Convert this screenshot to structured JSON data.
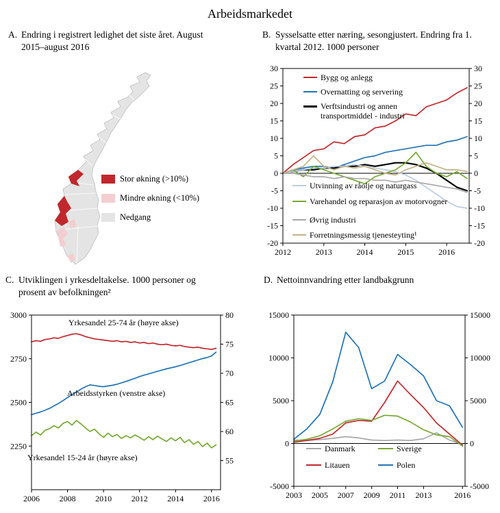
{
  "page_title": "Arbeidsmarkedet",
  "panels": {
    "a": {
      "letter": "A.",
      "title": "Endring i registrert ledighet det siste året. August 2015–august 2016",
      "legend": [
        {
          "label": "Stor økning (>10%)",
          "color": "#c0282d"
        },
        {
          "label": "Mindre økning (<10%)",
          "color": "#f4cdd0"
        },
        {
          "label": "Nedgang",
          "color": "#e4e4e4"
        }
      ],
      "map": {
        "land_color": "#e4e4e4",
        "border_color": "#bdbdbd"
      }
    },
    "b": {
      "letter": "B.",
      "title": "Sysselsatte etter næring, sesongjustert. Endring fra 1. kvartal 2012. 1000 personer"
    },
    "c": {
      "letter": "C.",
      "title": "Utviklingen i yrkesdeltakelse. 1000 personer og prosent av befolkningen²"
    },
    "d": {
      "letter": "D.",
      "title": "Nettoinnvandring etter landbakgrunn"
    }
  },
  "chart_data": [
    {
      "panel": "B",
      "type": "line",
      "title": "Sysselsatte etter næring, sesongjustert. Endring fra 1. kvartal 2012. 1000 personer",
      "x_start": 2012.0,
      "x_step": 0.25,
      "xlim": [
        2012,
        2016.55
      ],
      "ylim": [
        -20,
        30
      ],
      "yticks": [
        -20,
        -15,
        -10,
        -5,
        0,
        5,
        10,
        15,
        20,
        25,
        30
      ],
      "xticks": [
        2012,
        2013,
        2014,
        2015,
        2016
      ],
      "zero_line": true,
      "grid": false,
      "series": [
        {
          "name": "Bygg og anlegg",
          "color": "#c0282d",
          "values": [
            0,
            2.5,
            4.5,
            6.5,
            7,
            9,
            8.5,
            10.5,
            11,
            13,
            13.5,
            15,
            17,
            16.5,
            19,
            20,
            21,
            23,
            24.5
          ]
        },
        {
          "name": "Overnatting og servering",
          "color": "#2272b5",
          "values": [
            0,
            1,
            1.5,
            2,
            2,
            1.5,
            2.5,
            3.5,
            4.5,
            5,
            6,
            6.5,
            7,
            7.5,
            8,
            8,
            9,
            9.5,
            10.5
          ]
        },
        {
          "name": "Verftsindustri og annen transportmiddel - industri",
          "color": "#000000",
          "w": 2.2,
          "values": [
            0,
            0.5,
            1,
            1,
            1.5,
            1.5,
            2,
            2,
            2.5,
            2,
            2.5,
            3,
            3,
            2.5,
            1.5,
            0,
            -2,
            -4,
            -5
          ]
        },
        {
          "name": "Utvinning av råolje og naturgass",
          "color": "#b9cde5",
          "values": [
            0,
            0.5,
            1,
            1.5,
            1.5,
            2,
            2,
            2.5,
            2,
            1.5,
            1,
            0.5,
            -0.5,
            -2,
            -4,
            -6,
            -8,
            -9.5,
            -10
          ]
        },
        {
          "name": "Varehandel og reparasjon av motorvogner",
          "color": "#77a833",
          "values": [
            0,
            1,
            -1,
            2,
            1,
            0,
            -1,
            -2,
            -3,
            -1,
            0,
            1,
            3,
            6,
            2,
            0,
            -1,
            0.5,
            -1.5
          ]
        },
        {
          "name": "Øvrig industri",
          "color": "#a8a8a8",
          "values": [
            0,
            0,
            -0.5,
            -1,
            -1,
            -1.5,
            -1,
            -1.5,
            -1.5,
            -2,
            -2,
            -2.5,
            -2,
            -2.5,
            -3,
            -3.5,
            -4,
            -4.5,
            -5.5
          ]
        },
        {
          "name": "Forretningsmessig tjenesteyting¹",
          "color": "#c2b286",
          "values": [
            0,
            1,
            2,
            5,
            2,
            1,
            2,
            1.5,
            2,
            1,
            0,
            -0.5,
            1,
            2,
            3,
            2,
            1,
            1,
            0.5
          ]
        }
      ]
    },
    {
      "panel": "C",
      "type": "line",
      "title": "Utviklingen i yrkesdeltakelse. 1000 personer og prosent av befolkningen²",
      "x_start": 2006.0,
      "x_step": 0.25,
      "xlim": [
        2006,
        2016.5
      ],
      "ylim_left": [
        2000,
        3000
      ],
      "yticks_left": [
        2250,
        2500,
        2750,
        3000
      ],
      "ylim_right": [
        50,
        80
      ],
      "yticks_right": [
        55,
        60,
        65,
        70,
        75,
        80
      ],
      "xticks": [
        2006,
        2008,
        2010,
        2012,
        2014,
        2016
      ],
      "zero_line": false,
      "grid": false,
      "series": [
        {
          "name": "Yrkesandel 25-74 år (høyre akse)",
          "axis": "right",
          "color": "#c0282d",
          "values": [
            75.4,
            75.6,
            75.5,
            75.8,
            75.9,
            76.1,
            76.0,
            76.3,
            76.5,
            76.7,
            76.8,
            76.6,
            76.3,
            76.1,
            75.9,
            75.8,
            75.7,
            75.6,
            75.5,
            75.6,
            75.4,
            75.5,
            75.3,
            75.4,
            75.2,
            75.3,
            75.1,
            75.2,
            75.0,
            74.9,
            75.0,
            74.8,
            74.7,
            74.8,
            74.6,
            74.5,
            74.4,
            74.5,
            74.3,
            74.2,
            74.1,
            74.3
          ]
        },
        {
          "name": "Arbeidsstyrken (venstre akse)",
          "axis": "left",
          "color": "#2272b5",
          "values": [
            2430,
            2438,
            2445,
            2455,
            2466,
            2480,
            2494,
            2510,
            2528,
            2545,
            2560,
            2576,
            2590,
            2600,
            2597,
            2592,
            2590,
            2594,
            2598,
            2604,
            2612,
            2620,
            2629,
            2638,
            2648,
            2656,
            2663,
            2670,
            2678,
            2685,
            2692,
            2698,
            2704,
            2711,
            2719,
            2727,
            2735,
            2743,
            2751,
            2757,
            2766,
            2788
          ]
        },
        {
          "name": "Yrkesandel 15-24 år (høyre akse)",
          "axis": "right",
          "color": "#77a833",
          "values": [
            59.3,
            59.9,
            59.4,
            60.2,
            60.5,
            61.0,
            60.6,
            61.4,
            61.7,
            61.1,
            61.9,
            61.3,
            60.6,
            60.0,
            60.4,
            59.6,
            59.0,
            59.7,
            59.1,
            59.5,
            58.8,
            59.3,
            58.9,
            59.4,
            59.0,
            58.5,
            59.1,
            58.6,
            59.2,
            58.7,
            58.3,
            58.9,
            58.4,
            59.0,
            58.1,
            58.6,
            57.8,
            58.3,
            57.4,
            58.0,
            57.2,
            57.7
          ]
        }
      ]
    },
    {
      "panel": "D",
      "type": "line",
      "title": "Nettoinnvandring etter landbakgrunn",
      "x_start": 2003,
      "x_step": 1,
      "xlim": [
        2003,
        2016.2
      ],
      "ylim": [
        -5000,
        15000
      ],
      "yticks": [
        -5000,
        0,
        5000,
        10000,
        15000
      ],
      "xticks": [
        2003,
        2005,
        2007,
        2009,
        2011,
        2013,
        2016
      ],
      "zero_line": true,
      "grid": false,
      "series": [
        {
          "name": "Danmark",
          "color": "#a8a8a8",
          "values": [
            400,
            350,
            450,
            600,
            800,
            650,
            400,
            350,
            400,
            350,
            550,
            1250,
            400,
            -100
          ]
        },
        {
          "name": "Litauen",
          "color": "#c0282d",
          "values": [
            150,
            350,
            600,
            1100,
            2400,
            2700,
            2600,
            4800,
            7300,
            5700,
            4200,
            2400,
            1100,
            -200
          ]
        },
        {
          "name": "Sverige",
          "color": "#77a833",
          "values": [
            300,
            500,
            900,
            1700,
            2600,
            2900,
            2700,
            3300,
            3200,
            2500,
            1600,
            1000,
            800,
            -300
          ]
        },
        {
          "name": "Polen",
          "color": "#2272b5",
          "values": [
            500,
            1700,
            3400,
            7200,
            13000,
            11200,
            6400,
            7300,
            10400,
            9200,
            7900,
            5000,
            4400,
            1900
          ]
        }
      ]
    }
  ]
}
